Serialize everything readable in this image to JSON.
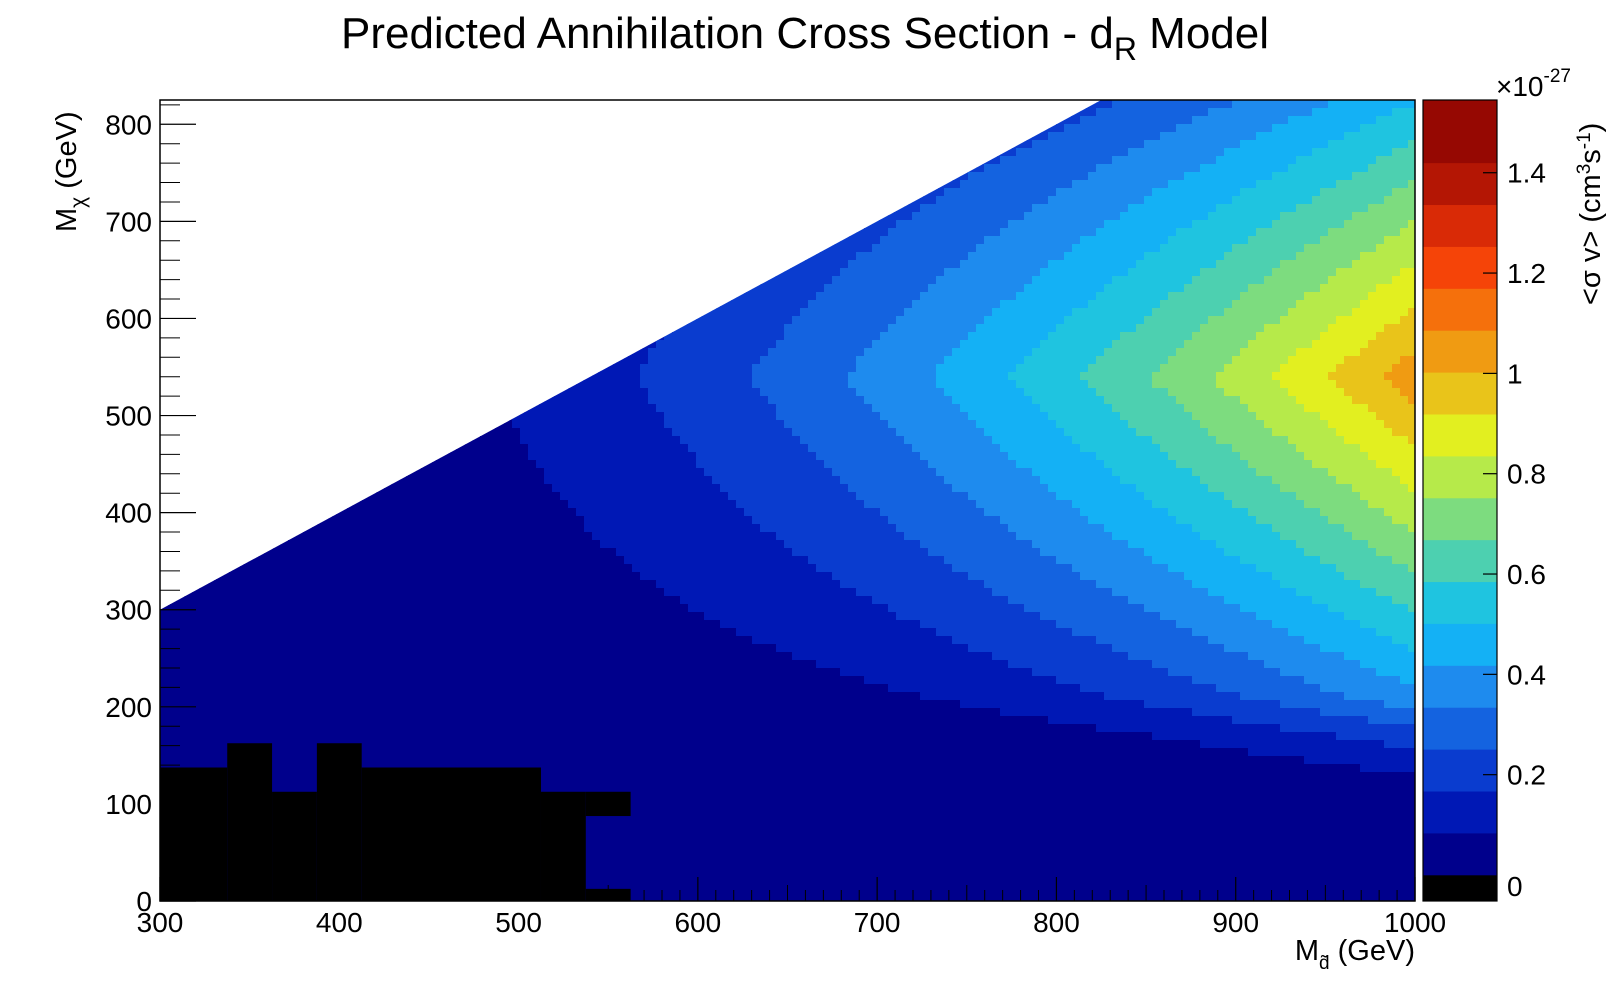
{
  "chart_data": {
    "type": "heatmap",
    "title": "Predicted Annihilation Cross Section - d",
    "title_sub": "R",
    "title_tail": " Model",
    "xlabel": "M",
    "xlabel_sub": "d̃",
    "xlabel_unit": " (GeV)",
    "ylabel": "M",
    "ylabel_sub": "χ",
    "ylabel_unit": " (GeV)",
    "zlabel_pre": "<σ v> (cm",
    "zlabel_sup1": "3",
    "zlabel_mid": "s",
    "zlabel_sup2": "-1",
    "zlabel_post": ")",
    "z_multiplier_prefix": "×10",
    "z_multiplier_exp": "-27",
    "xlim": [
      300,
      1000
    ],
    "ylim": [
      0,
      825
    ],
    "zlim": [
      0,
      1.5
    ],
    "x_ticks": [
      "300",
      "400",
      "500",
      "600",
      "700",
      "800",
      "900",
      "1000"
    ],
    "y_ticks": [
      "0",
      "100",
      "200",
      "300",
      "400",
      "500",
      "600",
      "700",
      "800"
    ],
    "z_ticks": [
      "0",
      "0.2",
      "0.4",
      "0.6",
      "0.8",
      "1",
      "1.2",
      "1.4"
    ],
    "allowed_region_boundary": [
      [
        300,
        300
      ],
      [
        825,
        825
      ]
    ],
    "excluded_region_color": "#000000",
    "excluded_region_steps": [
      {
        "x0": 300,
        "x1": 337.5,
        "y": 137.5
      },
      {
        "x0": 337.5,
        "x1": 362.5,
        "y": 162.5
      },
      {
        "x0": 362.5,
        "x1": 387.5,
        "y": 112.5
      },
      {
        "x0": 387.5,
        "x1": 412.5,
        "y": 162.5
      },
      {
        "x0": 412.5,
        "x1": 512.5,
        "y": 137.5
      },
      {
        "x0": 512.5,
        "x1": 537.5,
        "y": 112.5
      },
      {
        "x0": 537.5,
        "x1": 562.5,
        "y": 12.5
      }
    ],
    "excluded_region_extra": [
      {
        "x0": 537.5,
        "x1": 562.5,
        "y0": 87.5,
        "y1": 112.5
      }
    ],
    "peak": {
      "x": 1000,
      "y": 540,
      "z": 1.05
    },
    "colormap": [
      "#00008c",
      "#0018b5",
      "#0a3ccf",
      "#1463e0",
      "#1e8bee",
      "#14b1f5",
      "#1fc4e0",
      "#4dd0b0",
      "#7ddc7f",
      "#b6ea4a",
      "#e2ef20",
      "#e9c41a",
      "#f09b12",
      "#f5700c",
      "#f54408",
      "#d92a06",
      "#b41604",
      "#960802"
    ],
    "zero_color": "#000000"
  }
}
